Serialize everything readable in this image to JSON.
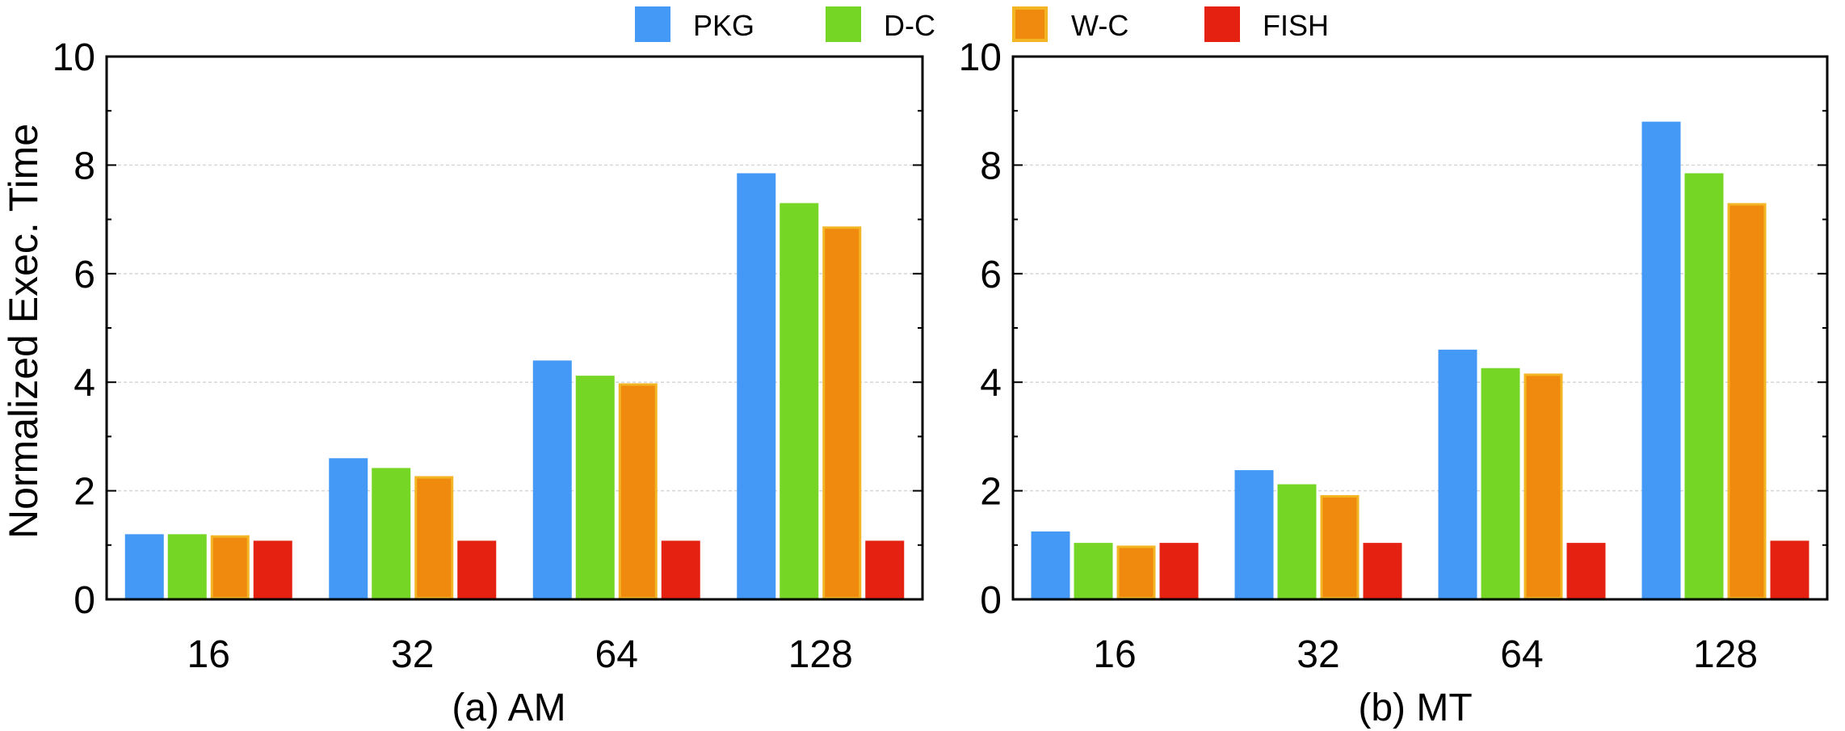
{
  "legend": [
    {
      "name": "PKG",
      "color": "#4499f7"
    },
    {
      "name": "D-C",
      "color": "#76d626"
    },
    {
      "name": "W-C",
      "color": "#ef8a0e",
      "edge": "#f3b524"
    },
    {
      "name": "FISH",
      "color": "#e52212"
    }
  ],
  "chart_data": [
    {
      "type": "bar",
      "title": "(a) AM",
      "xlabel": "",
      "ylabel": "Normalized Exec. Time",
      "ylim": [
        0,
        10
      ],
      "yticks": [
        "0",
        "2",
        "4",
        "6",
        "8",
        "10"
      ],
      "categories": [
        "16",
        "32",
        "64",
        "128"
      ],
      "series": [
        {
          "name": "PKG",
          "values": [
            1.2,
            2.6,
            4.4,
            7.85
          ]
        },
        {
          "name": "D-C",
          "values": [
            1.2,
            2.42,
            4.12,
            7.3
          ]
        },
        {
          "name": "W-C",
          "values": [
            1.18,
            2.27,
            3.98,
            6.87
          ]
        },
        {
          "name": "FISH",
          "values": [
            1.08,
            1.08,
            1.08,
            1.08
          ]
        }
      ]
    },
    {
      "type": "bar",
      "title": "(b) MT",
      "xlabel": "",
      "ylabel": "",
      "ylim": [
        0,
        10
      ],
      "yticks": [
        "0",
        "2",
        "4",
        "6",
        "8",
        "10"
      ],
      "categories": [
        "16",
        "32",
        "64",
        "128"
      ],
      "series": [
        {
          "name": "PKG",
          "values": [
            1.25,
            2.38,
            4.6,
            8.8
          ]
        },
        {
          "name": "D-C",
          "values": [
            1.04,
            2.12,
            4.26,
            7.85
          ]
        },
        {
          "name": "W-C",
          "values": [
            0.99,
            1.92,
            4.16,
            7.3
          ]
        },
        {
          "name": "FISH",
          "values": [
            1.04,
            1.04,
            1.04,
            1.08
          ]
        }
      ]
    }
  ]
}
